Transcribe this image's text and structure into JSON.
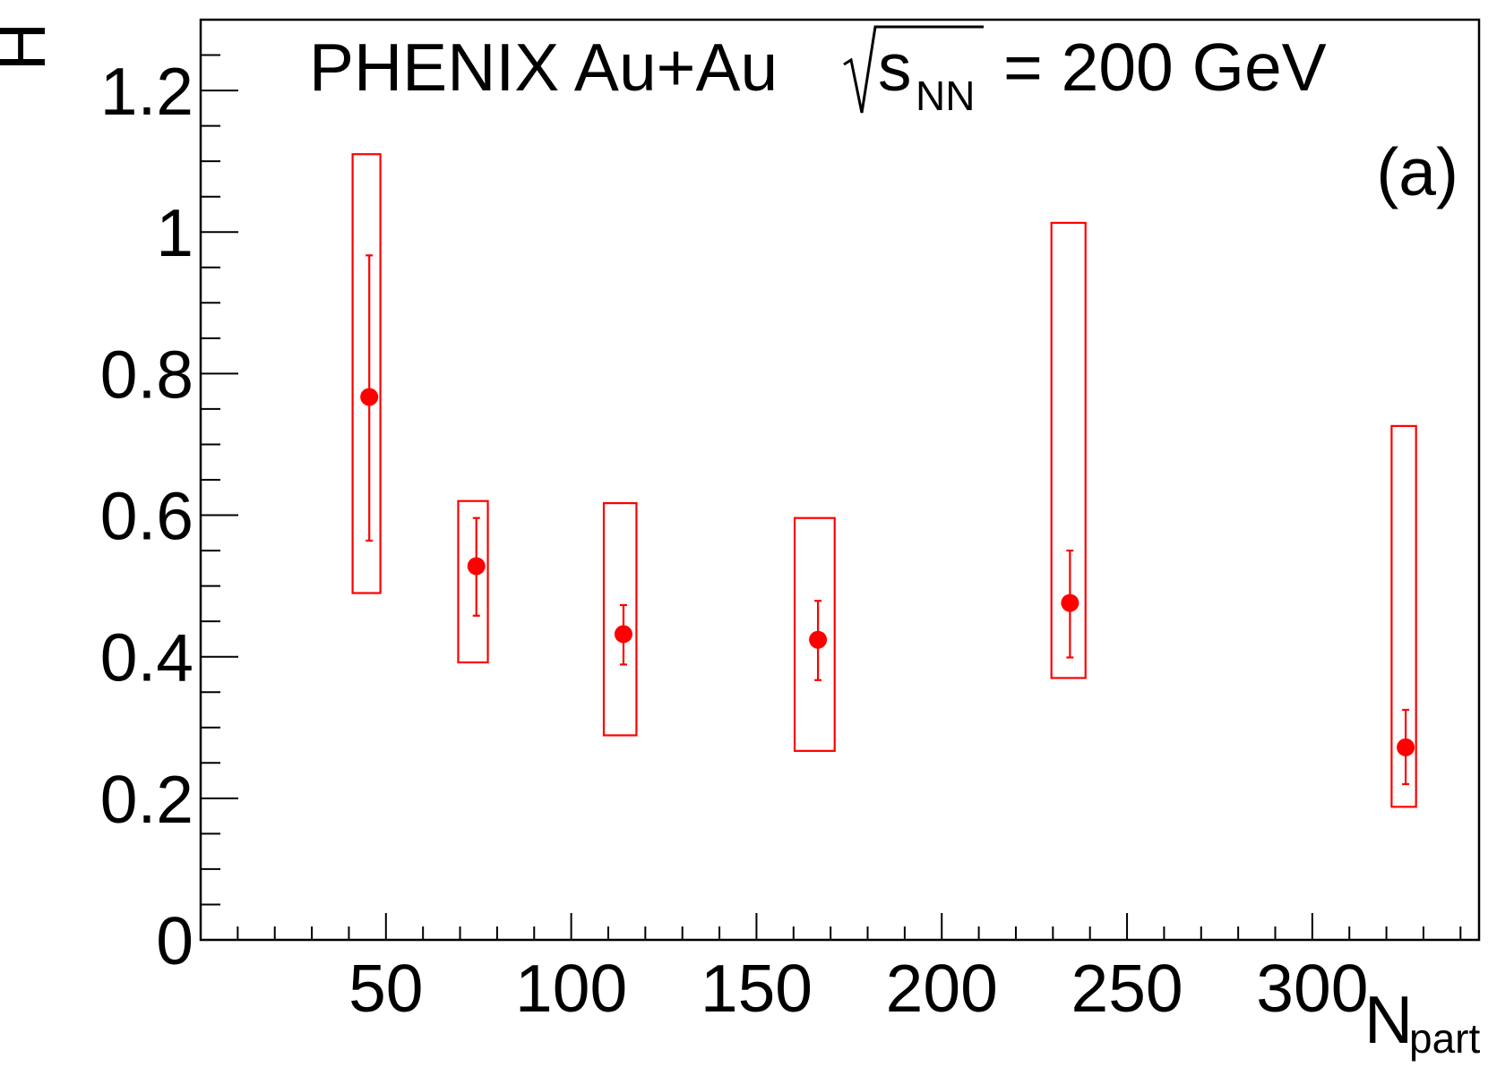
{
  "chart_data": {
    "type": "scatter",
    "title": "PHENIX Au+Au",
    "energy_label": {
      "sqrt_symbol": "√",
      "s": "s",
      "subscript": "NN",
      "value": "= 200 GeV"
    },
    "panel_label": "(a)",
    "xlabel": {
      "main": "N",
      "sub": "part"
    },
    "ylabel": "H",
    "xlim": [
      0,
      345
    ],
    "ylim": [
      0,
      1.3
    ],
    "x_ticks": [
      "50",
      "100",
      "150",
      "200",
      "250",
      "300"
    ],
    "y_ticks": [
      "0",
      "0.2",
      "0.4",
      "0.6",
      "0.8",
      "1",
      "1.2"
    ],
    "grid": false,
    "color": "#ff0000",
    "points": [
      {
        "x": 45.5,
        "y": 0.767,
        "stat_low": 0.564,
        "stat_high": 0.967,
        "syst_low": 0.49,
        "syst_high": 1.11,
        "syst_x_low": 41.0,
        "syst_x_high": 48.5
      },
      {
        "x": 74.4,
        "y": 0.528,
        "stat_low": 0.458,
        "stat_high": 0.596,
        "syst_low": 0.392,
        "syst_high": 0.62,
        "syst_x_low": 69.5,
        "syst_x_high": 77.5
      },
      {
        "x": 114.1,
        "y": 0.432,
        "stat_low": 0.389,
        "stat_high": 0.473,
        "syst_low": 0.289,
        "syst_high": 0.617,
        "syst_x_low": 108.8,
        "syst_x_high": 117.6
      },
      {
        "x": 166.6,
        "y": 0.424,
        "stat_low": 0.367,
        "stat_high": 0.479,
        "syst_low": 0.267,
        "syst_high": 0.596,
        "syst_x_low": 160.3,
        "syst_x_high": 171.1
      },
      {
        "x": 234.6,
        "y": 0.476,
        "stat_low": 0.399,
        "stat_high": 0.55,
        "syst_low": 0.37,
        "syst_high": 1.013,
        "syst_x_low": 229.6,
        "syst_x_high": 238.8
      },
      {
        "x": 325.2,
        "y": 0.272,
        "stat_low": 0.22,
        "stat_high": 0.325,
        "syst_low": 0.188,
        "syst_high": 0.726,
        "syst_x_low": 321.4,
        "syst_x_high": 328.0
      }
    ]
  }
}
